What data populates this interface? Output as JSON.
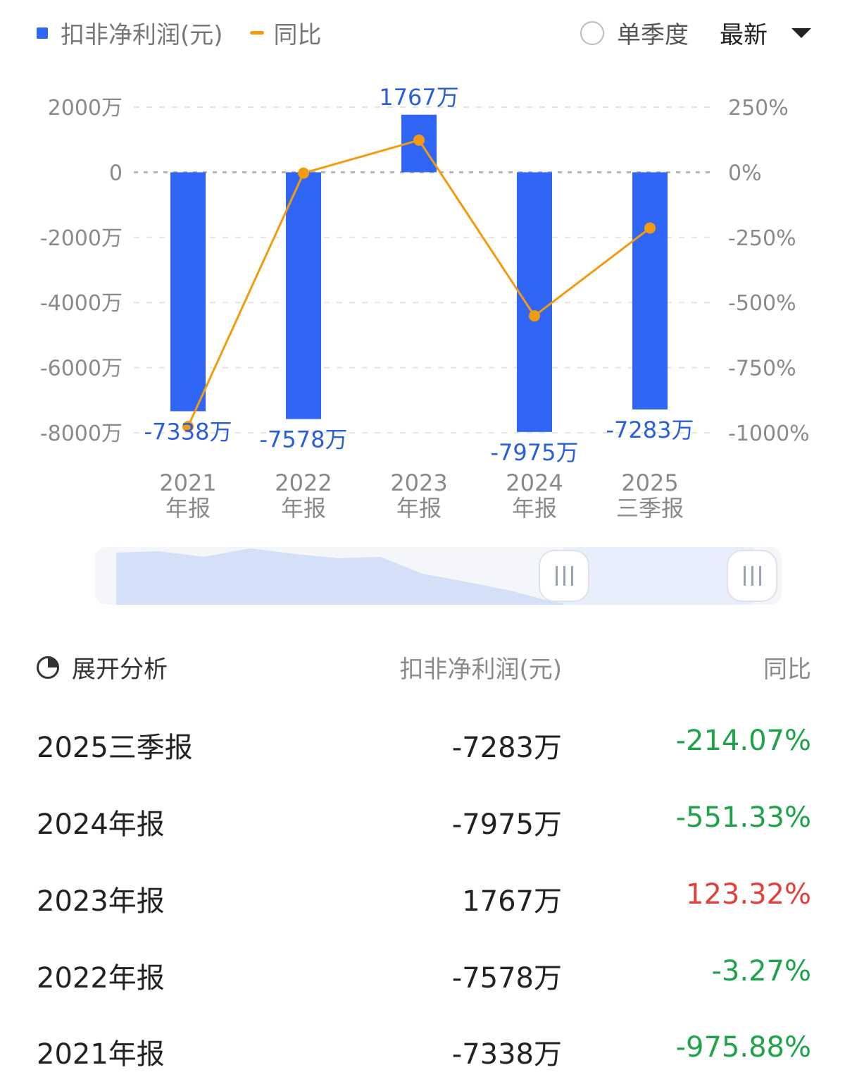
{
  "legend": {
    "bar_label": "扣非净利润(元)",
    "line_label": "同比"
  },
  "controls": {
    "quarter_label": "单季度",
    "sort_label": "最新"
  },
  "colors": {
    "bar": "#2f66f6",
    "line": "#f29b10",
    "negative": "#1fa34a",
    "positive": "#e0413a"
  },
  "chart_data": {
    "type": "bar",
    "categories": [
      [
        "2021",
        "年报"
      ],
      [
        "2022",
        "年报"
      ],
      [
        "2023",
        "年报"
      ],
      [
        "2024",
        "年报"
      ],
      [
        "2025",
        "三季报"
      ]
    ],
    "series": [
      {
        "name": "扣非净利润(元)",
        "type": "bar",
        "axis": "left",
        "values": [
          -7338,
          -7578,
          1767,
          -7975,
          -7283
        ],
        "labels": [
          "-7338万",
          "-7578万",
          "1767万",
          "-7975万",
          "-7283万"
        ]
      },
      {
        "name": "同比",
        "type": "line",
        "axis": "right",
        "values": [
          -975.88,
          -3.27,
          123.32,
          -551.33,
          -214.07
        ]
      }
    ],
    "y_left": {
      "ticks": [
        2000,
        0,
        -2000,
        -4000,
        -6000,
        -8000
      ],
      "tick_labels": [
        "2000万",
        "0",
        "-2000万",
        "-4000万",
        "-6000万",
        "-8000万"
      ],
      "range": [
        -8000,
        2000
      ]
    },
    "y_right": {
      "ticks": [
        250,
        0,
        -250,
        -500,
        -750,
        -1000
      ],
      "tick_labels": [
        "250%",
        "0%",
        "-250%",
        "-500%",
        "-750%",
        "-1000%"
      ],
      "range": [
        -1000,
        250
      ]
    },
    "grid": true
  },
  "table": {
    "header": {
      "analyze_label": "展开分析",
      "value_col": "扣非净利润(元)",
      "yoy_col": "同比"
    },
    "rows": [
      {
        "period": "2025三季报",
        "value": "-7283万",
        "yoy": "-214.07%",
        "sign": "neg"
      },
      {
        "period": "2024年报",
        "value": "-7975万",
        "yoy": "-551.33%",
        "sign": "neg"
      },
      {
        "period": "2023年报",
        "value": "1767万",
        "yoy": "123.32%",
        "sign": "pos"
      },
      {
        "period": "2022年报",
        "value": "-7578万",
        "yoy": "-3.27%",
        "sign": "neg"
      },
      {
        "period": "2021年报",
        "value": "-7338万",
        "yoy": "-975.88%",
        "sign": "neg"
      }
    ]
  }
}
